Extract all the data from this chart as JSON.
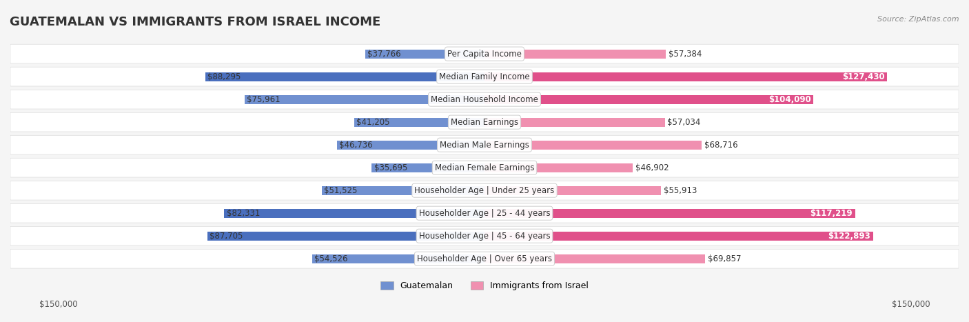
{
  "title": "GUATEMALAN VS IMMIGRANTS FROM ISRAEL INCOME",
  "source": "Source: ZipAtlas.com",
  "categories": [
    "Per Capita Income",
    "Median Family Income",
    "Median Household Income",
    "Median Earnings",
    "Median Male Earnings",
    "Median Female Earnings",
    "Householder Age | Under 25 years",
    "Householder Age | 25 - 44 years",
    "Householder Age | 45 - 64 years",
    "Householder Age | Over 65 years"
  ],
  "guatemalan_values": [
    37766,
    88295,
    75961,
    41205,
    46736,
    35695,
    51525,
    82331,
    87705,
    54526
  ],
  "israel_values": [
    57384,
    127430,
    104090,
    57034,
    68716,
    46902,
    55913,
    117219,
    122893,
    69857
  ],
  "guatemalan_labels": [
    "$37,766",
    "$88,295",
    "$75,961",
    "$41,205",
    "$46,736",
    "$35,695",
    "$51,525",
    "$82,331",
    "$87,705",
    "$54,526"
  ],
  "israel_labels": [
    "$57,384",
    "$127,430",
    "$104,090",
    "$57,034",
    "$68,716",
    "$46,902",
    "$55,913",
    "$117,219",
    "$122,893",
    "$69,857"
  ],
  "max_value": 150000,
  "guatemalan_bar_color": "#7090d0",
  "guatemalan_bar_color_dark": "#4a6fbe",
  "israel_bar_color": "#f090b0",
  "israel_bar_color_dark": "#e0508a",
  "background_color": "#f5f5f5",
  "row_bg_color": "#ffffff",
  "legend_guatemalan": "Guatemalan",
  "legend_israel": "Immigrants from Israel",
  "xlabel_left": "$150,000",
  "xlabel_right": "$150,000",
  "title_fontsize": 13,
  "label_fontsize": 8.5,
  "category_fontsize": 8.5
}
